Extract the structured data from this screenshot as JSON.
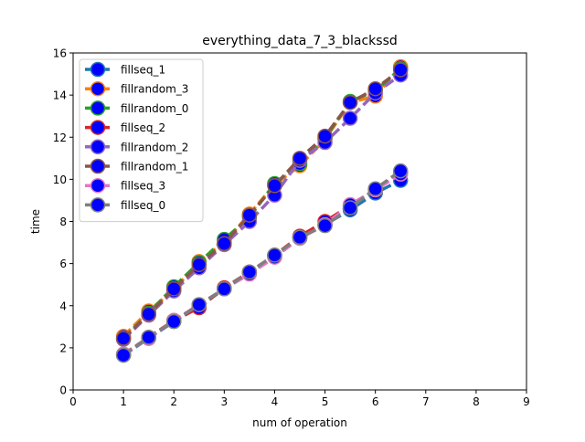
{
  "chart_data": {
    "type": "line",
    "title": "everything_data_7_3_blackssd",
    "xlabel": "num of operation",
    "ylabel": "time",
    "xlim": [
      0,
      9
    ],
    "ylim": [
      0,
      16
    ],
    "xticks": [
      0,
      1,
      2,
      3,
      4,
      5,
      6,
      7,
      8,
      9
    ],
    "yticks": [
      0,
      2,
      4,
      6,
      8,
      10,
      12,
      14,
      16
    ],
    "grid": false,
    "legend_position": "upper-left",
    "marker_fill": "#0000ff",
    "series": [
      {
        "name": "fillseq_1",
        "color": "#1f77b4",
        "x": [
          1,
          1.5,
          2,
          2.5,
          3,
          3.5,
          4,
          4.5,
          5,
          5.5,
          6,
          6.5
        ],
        "y": [
          1.65,
          2.45,
          3.25,
          3.95,
          4.8,
          5.55,
          6.35,
          7.2,
          7.85,
          8.55,
          9.35,
          9.95
        ]
      },
      {
        "name": "fillrandom_3",
        "color": "#ff7f0e",
        "x": [
          1,
          1.5,
          2,
          2.5,
          3,
          3.5,
          4,
          4.5,
          5,
          5.5,
          6,
          6.5
        ],
        "y": [
          2.55,
          3.75,
          4.75,
          6.1,
          7.0,
          8.35,
          9.75,
          10.65,
          11.9,
          13.65,
          13.95,
          15.35
        ]
      },
      {
        "name": "fillrandom_0",
        "color": "#2ca02c",
        "x": [
          1,
          1.5,
          2,
          2.5,
          3,
          3.5,
          4,
          4.5,
          5,
          5.5,
          6,
          6.5
        ],
        "y": [
          2.45,
          3.65,
          4.9,
          6.05,
          7.15,
          8.2,
          9.8,
          10.75,
          11.95,
          13.7,
          14.2,
          15.25
        ]
      },
      {
        "name": "fillseq_2",
        "color": "#d62728",
        "x": [
          1,
          1.5,
          2,
          2.5,
          3,
          3.5,
          4,
          4.5,
          5,
          5.5,
          6,
          6.5
        ],
        "y": [
          1.7,
          2.5,
          3.3,
          3.9,
          4.85,
          5.6,
          6.4,
          7.3,
          8.0,
          8.75,
          9.5,
          10.3
        ]
      },
      {
        "name": "fillrandom_2",
        "color": "#9467bd",
        "x": [
          1,
          1.5,
          2,
          2.5,
          3,
          3.5,
          4,
          4.5,
          5,
          5.5,
          6,
          6.5
        ],
        "y": [
          2.4,
          3.55,
          4.7,
          5.8,
          6.9,
          8.0,
          9.25,
          10.9,
          11.75,
          12.9,
          14.1,
          14.95
        ]
      },
      {
        "name": "fillrandom_1",
        "color": "#8c564b",
        "x": [
          1,
          1.5,
          2,
          2.5,
          3,
          3.5,
          4,
          4.5,
          5,
          5.5,
          6,
          6.5
        ],
        "y": [
          2.45,
          3.6,
          4.8,
          5.95,
          6.95,
          8.3,
          9.7,
          11.0,
          12.05,
          13.65,
          14.3,
          15.2
        ]
      },
      {
        "name": "fillseq_3",
        "color": "#e377c2",
        "x": [
          1,
          1.5,
          2,
          2.5,
          3,
          3.5,
          4,
          4.5,
          5,
          5.5,
          6,
          6.5
        ],
        "y": [
          1.7,
          2.45,
          3.3,
          4.05,
          4.8,
          5.5,
          6.3,
          7.2,
          7.85,
          8.8,
          9.5,
          10.25
        ]
      },
      {
        "name": "fillseq_0",
        "color": "#7f7f7f",
        "x": [
          1,
          1.5,
          2,
          2.5,
          3,
          3.5,
          4,
          4.5,
          5,
          5.5,
          6,
          6.5
        ],
        "y": [
          1.65,
          2.5,
          3.25,
          4.05,
          4.8,
          5.6,
          6.4,
          7.25,
          7.8,
          8.65,
          9.55,
          10.4
        ]
      }
    ]
  }
}
